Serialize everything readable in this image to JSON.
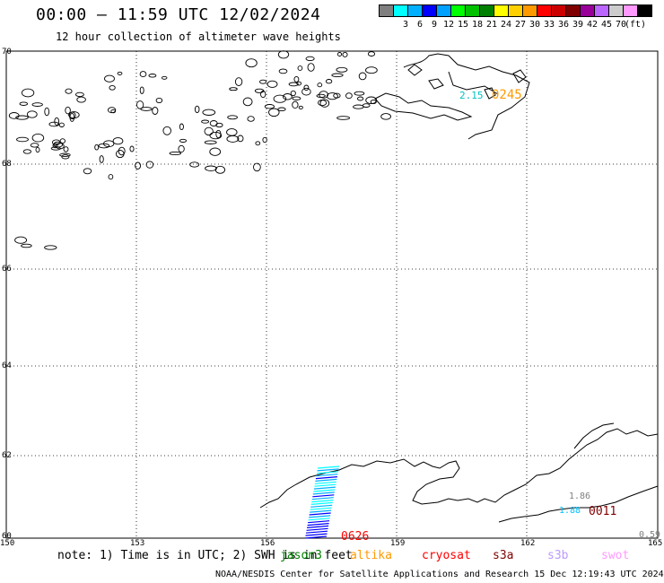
{
  "header": {
    "title": "00:00 – 11:59 UTC 12/02/2024",
    "subtitle": "12 hour collection of altimeter wave heights"
  },
  "scale": {
    "colors": [
      "#7f7f7f",
      "#00ffff",
      "#00b0ff",
      "#0000ff",
      "#00a0ff",
      "#00ff00",
      "#00c000",
      "#008000",
      "#ffff00",
      "#ffd000",
      "#ff9900",
      "#ff0000",
      "#cc0000",
      "#800000",
      "#990099",
      "#bb66ff",
      "#cccccc",
      "#ff99ff",
      "#000000"
    ],
    "labels": [
      "3",
      "6",
      "9",
      "12",
      "15",
      "18",
      "21",
      "24",
      "27",
      "30",
      "33",
      "36",
      "39",
      "42",
      "45",
      "70",
      "(ft)"
    ]
  },
  "axes": {
    "lat_labels": [
      "70",
      "68",
      "66",
      "64",
      "62",
      "60"
    ],
    "lon_labels": [
      "150",
      "153",
      "156",
      "159",
      "162",
      "165"
    ]
  },
  "annotations": {
    "t0245": "0245",
    "v215": "2.15",
    "t0626": "0626",
    "t0011": "0011",
    "v186": "1.86",
    "v188": "1.88",
    "v059": "0.59"
  },
  "note": "note: 1) Time is in UTC; 2) SWH is in feet",
  "satellites": [
    {
      "name": "jason3",
      "color": "#008000"
    },
    {
      "name": "altika",
      "color": "#ff9900"
    },
    {
      "name": "cryosat",
      "color": "#ff0000"
    },
    {
      "name": "s3a",
      "color": "#800000"
    },
    {
      "name": "s3b",
      "color": "#bb99ff"
    },
    {
      "name": "swot",
      "color": "#ff99ff"
    }
  ],
  "footer": "NOAA/NESDIS Center for Satellite Applications and Research   15 Dec 12:19:43 UTC 2024"
}
